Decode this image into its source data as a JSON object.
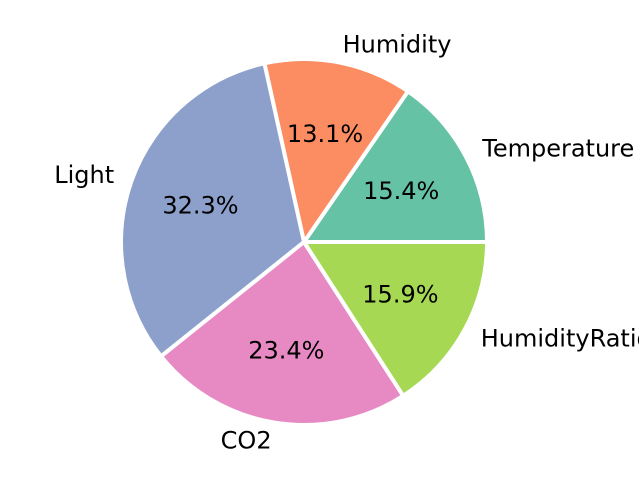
{
  "chart_data": {
    "type": "pie",
    "title": "",
    "start_angle_deg": 0,
    "direction": "counterclockwise",
    "slices": [
      {
        "label": "Temperature",
        "value": 15.4,
        "pct_label": "15.4%",
        "color": "#66c2a5"
      },
      {
        "label": "Humidity",
        "value": 13.1,
        "pct_label": "13.1%",
        "color": "#fc8d62"
      },
      {
        "label": "Light",
        "value": 32.3,
        "pct_label": "32.3%",
        "color": "#8da0cb"
      },
      {
        "label": "CO2",
        "value": 23.4,
        "pct_label": "23.4%",
        "color": "#e78ac3"
      },
      {
        "label": "HumidityRatio",
        "value": 15.9,
        "pct_label": "15.9%",
        "color": "#a6d854"
      }
    ]
  }
}
